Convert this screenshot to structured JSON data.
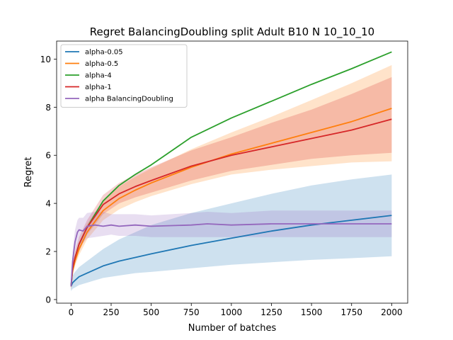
{
  "chart_data": {
    "type": "line",
    "title": "Regret BalancingDoubling split Adult B10 N 10_10_10",
    "xlabel": "Number of batches",
    "ylabel": "Regret",
    "xlim": [
      -90,
      2100
    ],
    "ylim": [
      -0.15,
      10.75
    ],
    "xticks": [
      0,
      250,
      500,
      750,
      1000,
      1250,
      1500,
      1750,
      2000
    ],
    "xtick_labels": [
      "0",
      "250",
      "500",
      "750",
      "1000",
      "1250",
      "1500",
      "1750",
      "2000"
    ],
    "yticks": [
      0,
      2,
      4,
      6,
      8,
      10
    ],
    "ytick_labels": [
      "0",
      "2",
      "4",
      "6",
      "8",
      "10"
    ],
    "legend_position": "top-left",
    "series": [
      {
        "name": "alpha-0.05",
        "color": "#1f77b4",
        "x": [
          0,
          10,
          25,
          50,
          100,
          200,
          300,
          400,
          500,
          750,
          1000,
          1250,
          1500,
          1750,
          2000
        ],
        "values": [
          0.55,
          0.7,
          0.8,
          0.95,
          1.1,
          1.4,
          1.6,
          1.75,
          1.9,
          2.25,
          2.55,
          2.85,
          3.1,
          3.3,
          3.5
        ],
        "band_low": [
          0.35,
          0.45,
          0.5,
          0.6,
          0.7,
          0.9,
          1.0,
          1.1,
          1.15,
          1.3,
          1.45,
          1.55,
          1.65,
          1.72,
          1.8
        ],
        "band_high": [
          0.8,
          1.0,
          1.15,
          1.35,
          1.6,
          2.1,
          2.5,
          2.8,
          3.1,
          3.6,
          4.0,
          4.4,
          4.75,
          5.0,
          5.2
        ]
      },
      {
        "name": "alpha-0.5",
        "color": "#ff7f0e",
        "x": [
          0,
          10,
          25,
          50,
          100,
          200,
          300,
          400,
          500,
          750,
          1000,
          1250,
          1500,
          1750,
          2000
        ],
        "values": [
          0.55,
          1.2,
          1.6,
          2.1,
          2.8,
          3.7,
          4.2,
          4.55,
          4.85,
          5.5,
          6.05,
          6.5,
          6.95,
          7.4,
          7.95
        ],
        "band_low": [
          0.4,
          1.0,
          1.4,
          1.85,
          2.5,
          3.3,
          3.75,
          4.05,
          4.3,
          4.8,
          5.2,
          5.4,
          5.55,
          5.7,
          5.75
        ],
        "band_high": [
          0.7,
          1.4,
          1.85,
          2.4,
          3.15,
          4.1,
          4.7,
          5.1,
          5.45,
          6.25,
          6.95,
          7.6,
          8.3,
          9.0,
          9.75
        ]
      },
      {
        "name": "alpha-4",
        "color": "#2ca02c",
        "x": [
          0,
          10,
          25,
          50,
          100,
          200,
          300,
          400,
          500,
          750,
          1000,
          1250,
          1500,
          1750,
          2000
        ],
        "values": [
          0.55,
          1.3,
          1.75,
          2.3,
          3.0,
          4.1,
          4.75,
          5.2,
          5.6,
          6.75,
          7.55,
          8.25,
          8.95,
          9.6,
          10.3
        ],
        "band_low": [],
        "band_high": []
      },
      {
        "name": "alpha-1",
        "color": "#d62728",
        "x": [
          0,
          10,
          25,
          50,
          100,
          200,
          300,
          400,
          500,
          750,
          1000,
          1250,
          1500,
          1750,
          2000
        ],
        "values": [
          0.55,
          1.3,
          1.75,
          2.3,
          3.0,
          3.95,
          4.4,
          4.7,
          4.95,
          5.55,
          6.0,
          6.35,
          6.7,
          7.05,
          7.5
        ],
        "band_low": [
          0.4,
          1.1,
          1.5,
          2.0,
          2.7,
          3.55,
          4.0,
          4.25,
          4.45,
          4.95,
          5.35,
          5.6,
          5.85,
          6.0,
          6.1
        ],
        "band_high": [
          0.7,
          1.5,
          2.0,
          2.6,
          3.3,
          4.35,
          4.85,
          5.2,
          5.5,
          6.2,
          6.75,
          7.35,
          7.9,
          8.55,
          9.25
        ]
      },
      {
        "name": "alpha BalancingDoubling",
        "color": "#9467bd",
        "x": [
          0,
          10,
          25,
          40,
          50,
          75,
          100,
          150,
          200,
          250,
          300,
          400,
          500,
          750,
          850,
          1000,
          1250,
          1500,
          1750,
          2000
        ],
        "values": [
          0.55,
          1.6,
          2.4,
          2.8,
          2.9,
          2.85,
          3.05,
          3.1,
          3.05,
          3.1,
          3.05,
          3.1,
          3.05,
          3.1,
          3.15,
          3.1,
          3.15,
          3.15,
          3.15,
          3.15
        ],
        "band_low": [
          0.4,
          1.2,
          1.9,
          2.2,
          2.3,
          2.35,
          2.55,
          2.6,
          2.65,
          2.7,
          2.65,
          2.65,
          2.6,
          2.6,
          2.6,
          2.6,
          2.6,
          2.6,
          2.6,
          2.6
        ],
        "band_high": [
          0.75,
          2.0,
          2.9,
          3.3,
          3.4,
          3.4,
          3.6,
          3.65,
          3.65,
          3.55,
          3.55,
          3.55,
          3.5,
          3.6,
          3.65,
          3.6,
          3.7,
          3.7,
          3.7,
          3.7
        ]
      }
    ]
  }
}
